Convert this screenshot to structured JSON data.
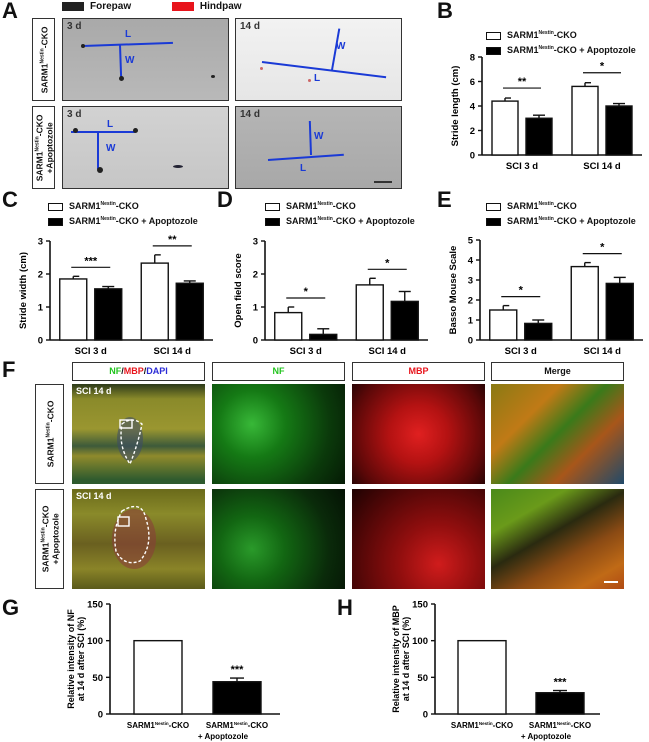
{
  "figure": {
    "panel_labels": [
      "A",
      "B",
      "C",
      "D",
      "E",
      "F",
      "G",
      "H"
    ]
  },
  "panel_a": {
    "legend": [
      {
        "label": "Forepaw",
        "color": "#222222"
      },
      {
        "label": "Hindpaw",
        "color": "#e8141c"
      }
    ],
    "rows": [
      {
        "label": "SARM1",
        "sup": "Nestin",
        "suffix": "-CKO",
        "line2": ""
      },
      {
        "label": "SARM1",
        "sup": "Nestin",
        "suffix": "-CKO",
        "line2": "+Apoptozole"
      }
    ],
    "timepoints": [
      "3 d",
      "14 d"
    ],
    "markers": {
      "length": "L",
      "width": "W"
    }
  },
  "legend_groups": {
    "control": {
      "label": "SARM1",
      "sup": "Nestin",
      "suffix": "-CKO",
      "color": "#ffffff"
    },
    "treated": {
      "label": "SARM1",
      "sup": "Nestin",
      "suffix": "-CKO + Apoptozole",
      "color": "#000000"
    }
  },
  "chart_data": [
    {
      "panel": "B",
      "type": "bar",
      "title": "",
      "xlabel": "",
      "ylabel": "Stride length (cm)",
      "categories": [
        "SCI 3 d",
        "SCI 14 d"
      ],
      "ylim": [
        0,
        8
      ],
      "yticks": [
        0,
        2,
        4,
        6,
        8
      ],
      "series": [
        {
          "name": "SARM1Nestin-CKO",
          "color": "#ffffff",
          "values": [
            4.4,
            5.6
          ],
          "errors": [
            0.25,
            0.3
          ]
        },
        {
          "name": "SARM1Nestin-CKO + Apoptozole",
          "color": "#000000",
          "values": [
            3.0,
            4.0
          ],
          "errors": [
            0.25,
            0.2
          ]
        }
      ],
      "significance": [
        "**",
        "*"
      ],
      "legend_position": "top"
    },
    {
      "panel": "C",
      "type": "bar",
      "title": "",
      "xlabel": "",
      "ylabel": "Stride width (cm)",
      "categories": [
        "SCI 3 d",
        "SCI 14 d"
      ],
      "ylim": [
        0,
        3
      ],
      "yticks": [
        0,
        1,
        2,
        3
      ],
      "series": [
        {
          "name": "SARM1Nestin-CKO",
          "color": "#ffffff",
          "values": [
            1.85,
            2.33
          ],
          "errors": [
            0.08,
            0.25
          ]
        },
        {
          "name": "SARM1Nestin-CKO + Apoptozole",
          "color": "#000000",
          "values": [
            1.55,
            1.72
          ],
          "errors": [
            0.07,
            0.07
          ]
        }
      ],
      "significance": [
        "***",
        "**"
      ],
      "legend_position": "top"
    },
    {
      "panel": "D",
      "type": "bar",
      "title": "",
      "xlabel": "",
      "ylabel": "Open field score",
      "categories": [
        "SCI 3 d",
        "SCI 14 d"
      ],
      "ylim": [
        0,
        3
      ],
      "yticks": [
        0,
        1,
        2,
        3
      ],
      "series": [
        {
          "name": "SARM1Nestin-CKO",
          "color": "#ffffff",
          "values": [
            0.83,
            1.67
          ],
          "errors": [
            0.17,
            0.2
          ]
        },
        {
          "name": "SARM1Nestin-CKO + Apoptozole",
          "color": "#000000",
          "values": [
            0.17,
            1.17
          ],
          "errors": [
            0.17,
            0.3
          ]
        }
      ],
      "significance": [
        "*",
        "*"
      ],
      "legend_position": "top"
    },
    {
      "panel": "E",
      "type": "bar",
      "title": "",
      "xlabel": "",
      "ylabel": "Basso Mouse Scale",
      "categories": [
        "SCI 3 d",
        "SCI 14 d"
      ],
      "ylim": [
        0,
        5
      ],
      "yticks": [
        0,
        1,
        2,
        3,
        4,
        5
      ],
      "series": [
        {
          "name": "SARM1Nestin-CKO",
          "color": "#ffffff",
          "values": [
            1.5,
            3.67
          ],
          "errors": [
            0.22,
            0.2
          ]
        },
        {
          "name": "SARM1Nestin-CKO + Apoptozole",
          "color": "#000000",
          "values": [
            0.83,
            2.83
          ],
          "errors": [
            0.17,
            0.3
          ]
        }
      ],
      "significance": [
        "*",
        "*"
      ],
      "legend_position": "top"
    },
    {
      "panel": "G",
      "type": "bar",
      "title": "",
      "xlabel": "",
      "ylabel": "Relative intensity of NF at 14 d after SCI (%)",
      "categories": [
        "SARM1Nestin-CKO",
        "SARM1Nestin-CKO + Apoptozole"
      ],
      "ylim": [
        0,
        150
      ],
      "yticks": [
        0,
        50,
        100,
        150
      ],
      "values": [
        100,
        44
      ],
      "errors": [
        0,
        5
      ],
      "colors": [
        "#ffffff",
        "#000000"
      ],
      "significance": [
        "",
        "***"
      ]
    },
    {
      "panel": "H",
      "type": "bar",
      "title": "",
      "xlabel": "",
      "ylabel": "Relative intensity of MBP at 14 d after SCI (%)",
      "categories": [
        "SARM1Nestin-CKO",
        "SARM1Nestin-CKO + Apoptozole"
      ],
      "ylim": [
        0,
        150
      ],
      "yticks": [
        0,
        50,
        100,
        150
      ],
      "values": [
        100,
        29
      ],
      "errors": [
        0,
        3
      ],
      "colors": [
        "#ffffff",
        "#000000"
      ],
      "significance": [
        "",
        "***"
      ]
    }
  ],
  "panel_f": {
    "headers": [
      {
        "parts": [
          {
            "t": "NF",
            "c": "#22c41e"
          },
          {
            "t": "/",
            "c": "#111"
          },
          {
            "t": "MBP",
            "c": "#e8141c"
          },
          {
            "t": "/",
            "c": "#111"
          },
          {
            "t": "DAPI",
            "c": "#2b2bd6"
          }
        ]
      },
      {
        "parts": [
          {
            "t": "NF",
            "c": "#22c41e"
          }
        ]
      },
      {
        "parts": [
          {
            "t": "MBP",
            "c": "#e8141c"
          }
        ]
      },
      {
        "parts": [
          {
            "t": "Merge",
            "c": "#111"
          }
        ]
      }
    ],
    "rows": [
      {
        "label": "SARM1",
        "sup": "Nestin",
        "suffix": "-CKO",
        "line2": "",
        "tag": "SCI 14 d"
      },
      {
        "label": "SARM1",
        "sup": "Nestin",
        "suffix": "-CKO",
        "line2": "+Apoptozole",
        "tag": "SCI 14 d"
      }
    ]
  },
  "axis_tick_labels": {
    "g_h_x": [
      {
        "label": "SARM1",
        "sup": "Nestin",
        "suffix": "-CKO",
        "line2": ""
      },
      {
        "label": "SARM1",
        "sup": "Nestin",
        "suffix": "-CKO",
        "line2": "+ Apoptozole"
      }
    ]
  }
}
